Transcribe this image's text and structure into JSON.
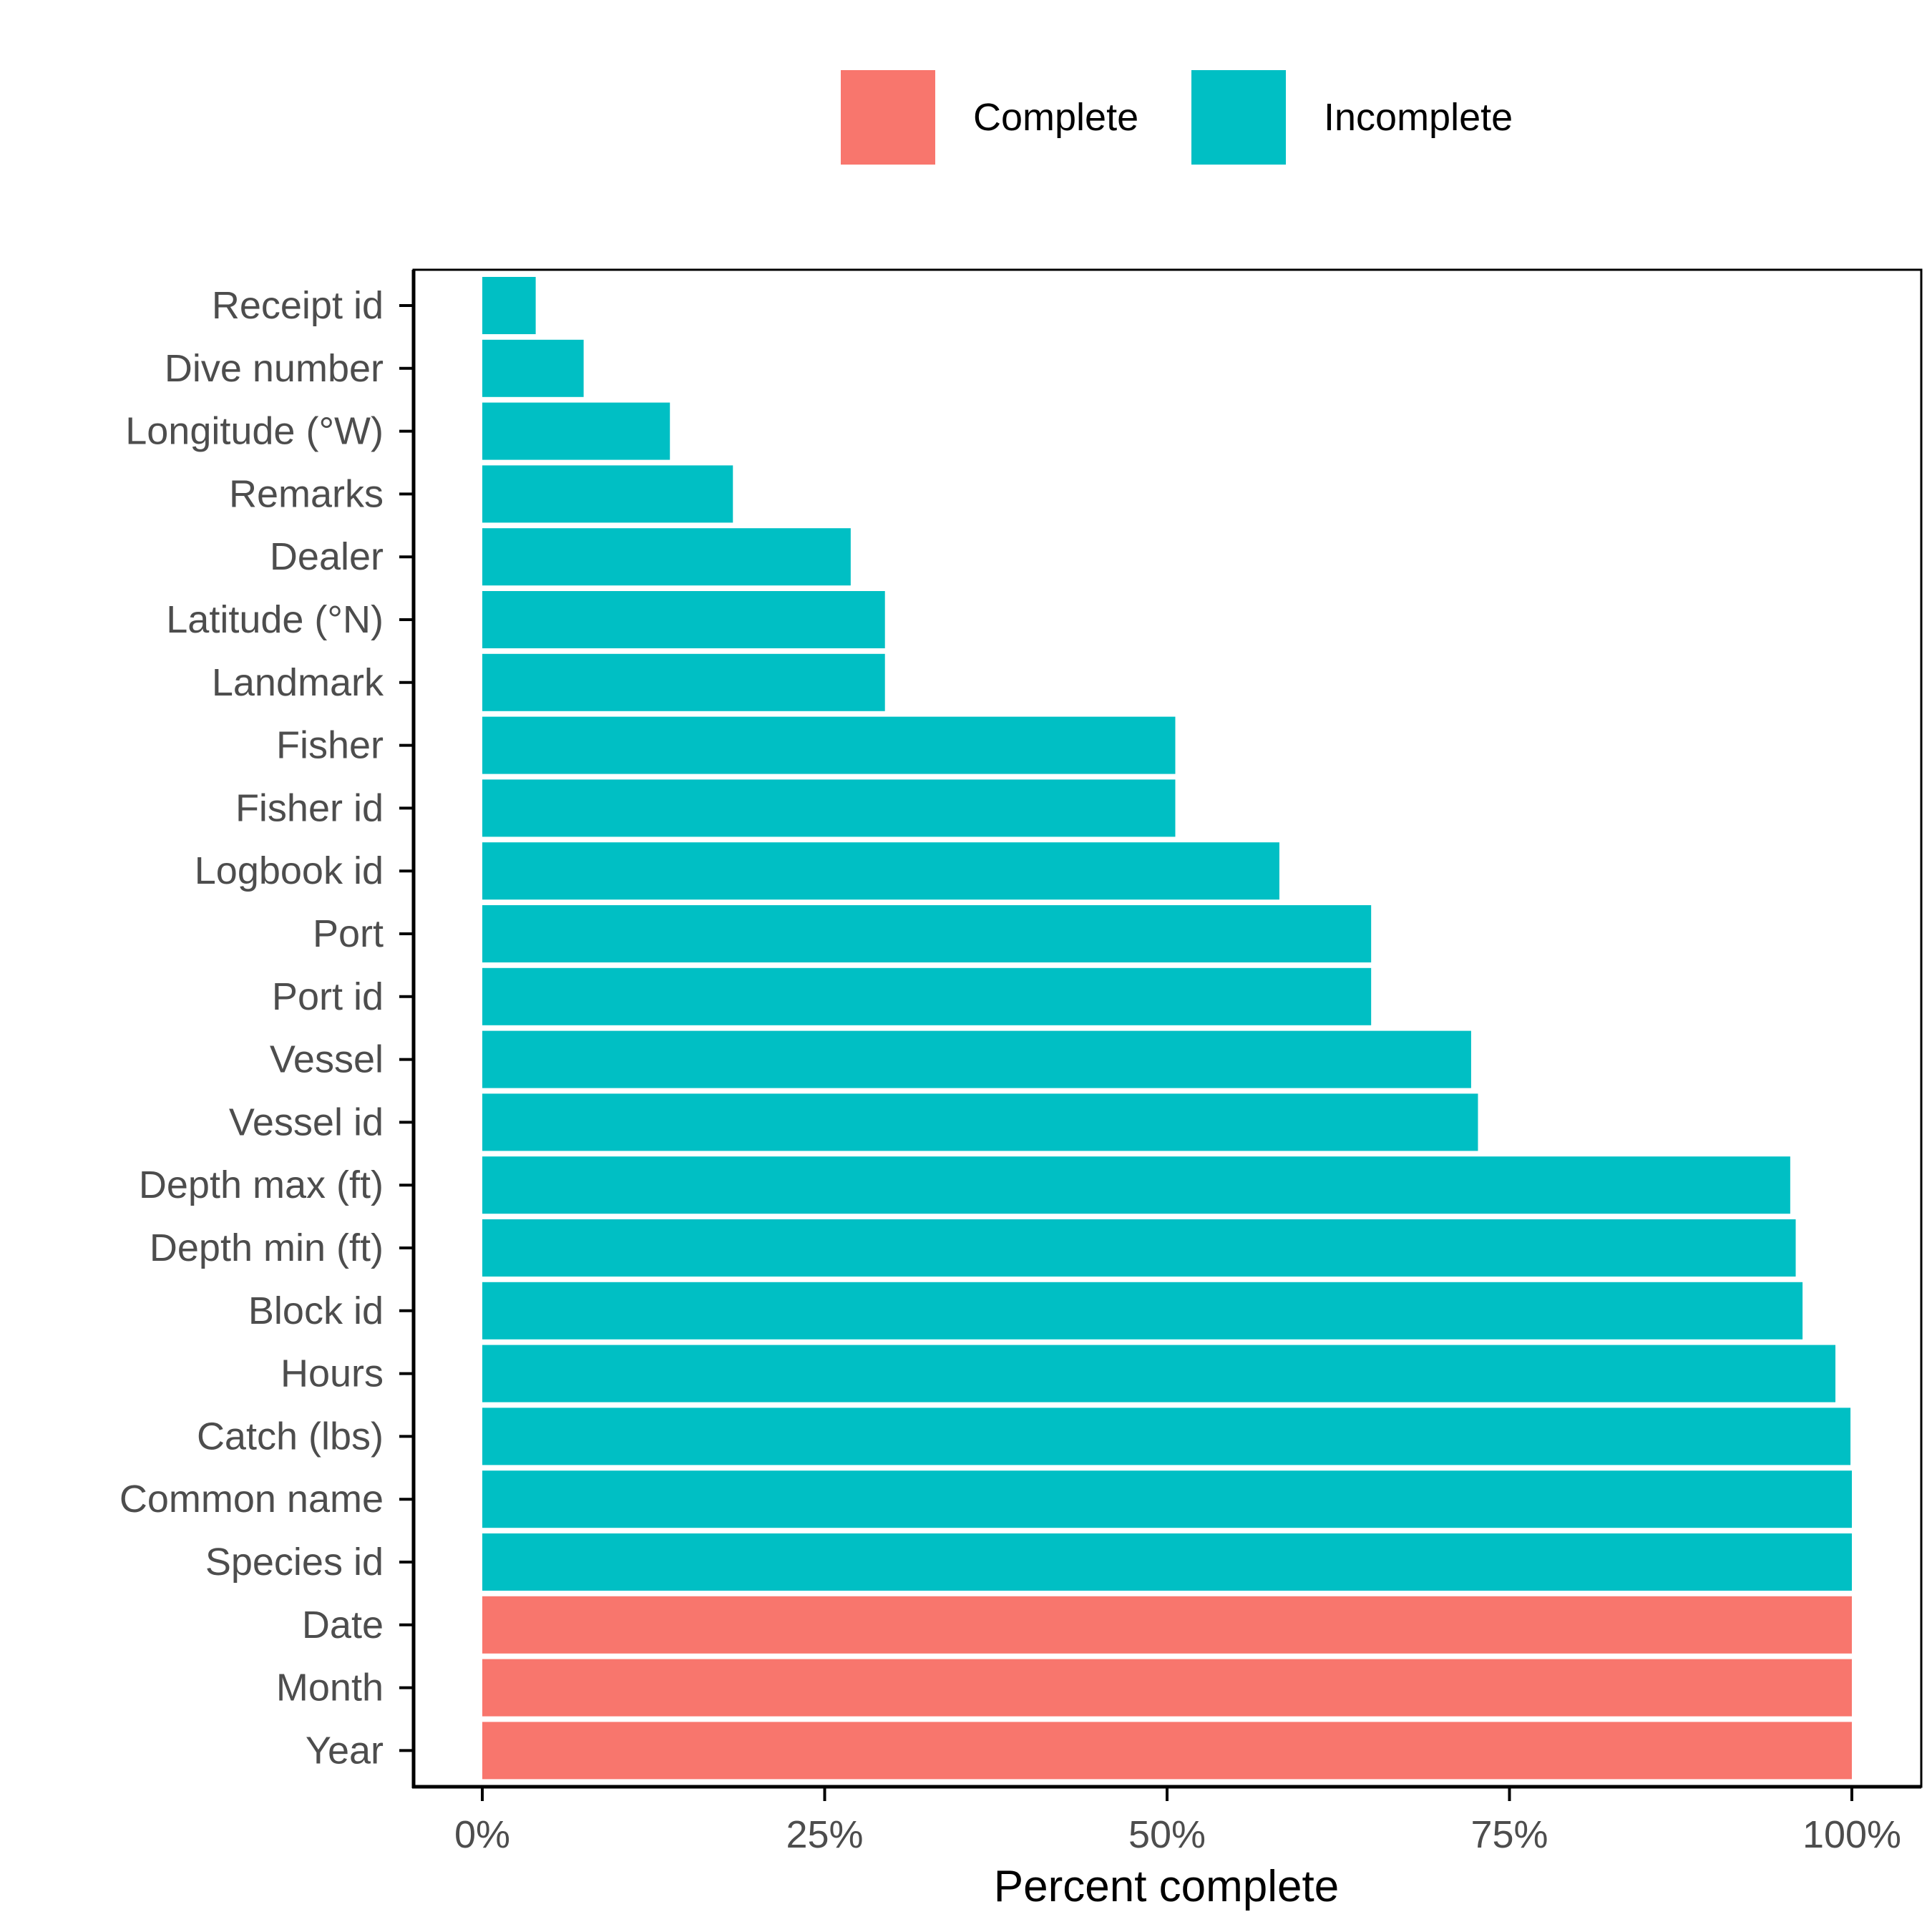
{
  "colors": {
    "complete": "#F8766D",
    "incomplete": "#00BFC4",
    "axis": "#000000",
    "tick_text": "#4d4d4d"
  },
  "chart_data": {
    "type": "bar",
    "orientation": "horizontal",
    "title": "",
    "xlabel": "Percent complete",
    "ylabel": "",
    "xlim": [
      0,
      100
    ],
    "x_ticks": [
      0,
      25,
      50,
      75,
      100
    ],
    "x_tick_labels": [
      "0%",
      "25%",
      "50%",
      "75%",
      "100%"
    ],
    "grid": false,
    "legend": {
      "position": "top",
      "entries": [
        {
          "label": "Complete",
          "color": "#F8766D"
        },
        {
          "label": "Incomplete",
          "color": "#00BFC4"
        }
      ]
    },
    "categories": [
      "Receipt id",
      "Dive number",
      "Longitude (°W)",
      "Remarks",
      "Dealer",
      "Latitude (°N)",
      "Landmark",
      "Fisher",
      "Fisher id",
      "Logbook id",
      "Port",
      "Port id",
      "Vessel",
      "Vessel id",
      "Depth max (ft)",
      "Depth min (ft)",
      "Block id",
      "Hours",
      "Catch (lbs)",
      "Common name",
      "Species id",
      "Date",
      "Month",
      "Year"
    ],
    "values": [
      3.9,
      7.4,
      13.7,
      18.3,
      26.9,
      29.4,
      29.4,
      50.6,
      50.6,
      58.2,
      64.9,
      64.9,
      72.2,
      72.7,
      95.5,
      95.9,
      96.4,
      98.8,
      99.9,
      100,
      100,
      100,
      100,
      100
    ],
    "status": [
      "Incomplete",
      "Incomplete",
      "Incomplete",
      "Incomplete",
      "Incomplete",
      "Incomplete",
      "Incomplete",
      "Incomplete",
      "Incomplete",
      "Incomplete",
      "Incomplete",
      "Incomplete",
      "Incomplete",
      "Incomplete",
      "Incomplete",
      "Incomplete",
      "Incomplete",
      "Incomplete",
      "Incomplete",
      "Incomplete",
      "Incomplete",
      "Complete",
      "Complete",
      "Complete"
    ]
  }
}
